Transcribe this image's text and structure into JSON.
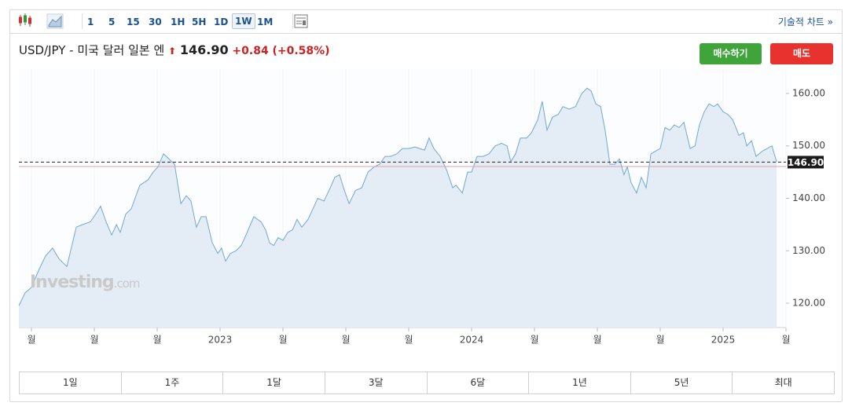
{
  "toolbar": {
    "intervals": [
      "1",
      "5",
      "15",
      "30",
      "1H",
      "5H",
      "1D",
      "1W",
      "1M"
    ],
    "selected_index": 7,
    "chart_link": "기술적 차트 »"
  },
  "header": {
    "title": "USD/JPY - 미국 달러 일본 엔",
    "price": "146.90",
    "change": "+0.84",
    "change_pct": "(+0.58%)"
  },
  "buttons": {
    "buy": "매수하기",
    "sell": "매도"
  },
  "ranges": [
    "1일",
    "1주",
    "1달",
    "3달",
    "6달",
    "1년",
    "5년",
    "최대"
  ],
  "watermark": {
    "brand": "Investing",
    "suffix": ".com"
  },
  "chart_data": {
    "type": "area",
    "color": "#6fa8d6",
    "fill": "#e4edf6",
    "grid": false,
    "x": [
      2022.2,
      2022.225,
      2022.25,
      2022.281,
      2022.306,
      2022.334,
      2022.359,
      2022.391,
      2022.428,
      2022.453,
      2022.484,
      2022.506,
      2022.525,
      2022.547,
      2022.569,
      2022.588,
      2022.603,
      2022.625,
      2022.647,
      2022.681,
      2022.713,
      2022.734,
      2022.753,
      2022.775,
      2022.797,
      2022.819,
      2022.844,
      2022.866,
      2022.884,
      2022.906,
      2022.925,
      2022.944,
      2022.969,
      2022.991,
      2023.006,
      2023.022,
      2023.041,
      2023.063,
      2023.084,
      2023.103,
      2023.134,
      2023.163,
      2023.181,
      2023.197,
      2023.213,
      2023.231,
      2023.25,
      2023.269,
      2023.288,
      2023.306,
      2023.325,
      2023.35,
      2023.369,
      2023.388,
      2023.413,
      2023.438,
      2023.456,
      2023.475,
      2023.494,
      2023.513,
      2023.538,
      2023.563,
      2023.588,
      2023.613,
      2023.634,
      2023.656,
      2023.678,
      2023.703,
      2023.725,
      2023.75,
      2023.775,
      2023.794,
      2023.813,
      2023.831,
      2023.85,
      2023.875,
      2023.9,
      2023.925,
      2023.938,
      2023.963,
      2023.984,
      2024.0,
      2024.022,
      2024.047,
      2024.069,
      2024.094,
      2024.119,
      2024.141,
      2024.156,
      2024.175,
      2024.194,
      2024.219,
      2024.238,
      2024.263,
      2024.281,
      2024.3,
      2024.322,
      2024.344,
      2024.363,
      2024.388,
      2024.413,
      2024.438,
      2024.459,
      2024.475,
      2024.494,
      2024.513,
      2024.531,
      2024.55,
      2024.569,
      2024.588,
      2024.606,
      2024.619,
      2024.634,
      2024.656,
      2024.675,
      2024.694,
      2024.713,
      2024.731,
      2024.75,
      2024.769,
      2024.788,
      2024.806,
      2024.825,
      2024.844,
      2024.869,
      2024.888,
      2024.906,
      2024.925,
      2024.944,
      2024.963,
      2024.978,
      2025.0,
      2025.019,
      2025.038,
      2025.063,
      2025.081,
      2025.094,
      2025.113,
      2025.131,
      2025.156,
      2025.175,
      2025.194,
      2025.213
    ],
    "values": [
      119.5,
      122,
      123,
      126.5,
      129,
      130.5,
      128.5,
      127,
      134.5,
      135,
      135.5,
      137,
      138.5,
      135.5,
      133,
      135,
      133.5,
      137,
      138,
      142.5,
      143.5,
      145,
      146,
      148.5,
      147.5,
      146.5,
      139,
      140.5,
      139.5,
      134.5,
      136.5,
      136.5,
      131.5,
      129.5,
      130.5,
      128,
      129.5,
      130,
      131,
      133,
      136.5,
      135.5,
      134,
      131.5,
      131,
      132.5,
      132,
      133.5,
      134,
      136,
      134.5,
      136,
      138,
      140,
      139.5,
      142,
      144,
      144.5,
      141.5,
      139,
      141.5,
      142,
      145,
      146,
      146.5,
      148,
      148,
      148.5,
      149.5,
      149.5,
      149.8,
      149.5,
      149.2,
      151.5,
      149.5,
      148,
      145.5,
      142,
      142.5,
      141,
      145,
      145,
      148,
      148,
      148.5,
      150,
      150.5,
      150,
      147,
      148.5,
      151.5,
      151.5,
      152.5,
      155,
      158.5,
      153,
      155.5,
      156,
      157.5,
      157,
      157.5,
      160,
      161,
      160.5,
      158,
      157.5,
      153,
      146.5,
      146.5,
      147.5,
      144.5,
      146,
      143,
      141,
      144,
      142,
      148.5,
      149,
      149.5,
      153.5,
      153,
      154,
      153.5,
      154.5,
      149.5,
      150,
      154,
      156.5,
      158,
      157.5,
      158,
      156.5,
      156,
      155,
      152,
      152.5,
      150,
      151,
      148,
      149,
      149.5,
      150,
      146.9
    ],
    "xlim": [
      2022.2,
      2025.25
    ],
    "xticks": [
      {
        "value": 2022.25,
        "label": "월"
      },
      {
        "value": 2022.5,
        "label": "월"
      },
      {
        "value": 2022.75,
        "label": "월"
      },
      2023,
      {
        "value": 2023.25,
        "label": "월"
      },
      {
        "value": 2023.5,
        "label": "월"
      },
      {
        "value": 2023.75,
        "label": "월"
      },
      2024,
      {
        "value": 2024.25,
        "label": "월"
      },
      {
        "value": 2024.5,
        "label": "월"
      },
      {
        "value": 2024.75,
        "label": "월"
      },
      2025,
      {
        "value": 2025.25,
        "label": "월"
      }
    ],
    "ylim": [
      115.36,
      164.64
    ],
    "yticks": [
      {
        "value": 120,
        "label": "120.00"
      },
      {
        "value": 130,
        "label": "130.00"
      },
      {
        "value": 140,
        "label": "140.00"
      },
      {
        "value": 150,
        "label": "150.00"
      },
      {
        "value": 160,
        "label": "160.00"
      }
    ],
    "last_price": {
      "value": 146.9,
      "label": "146.90"
    },
    "reference_line": {
      "value": 146.06,
      "color": "#e8a0a0"
    }
  }
}
